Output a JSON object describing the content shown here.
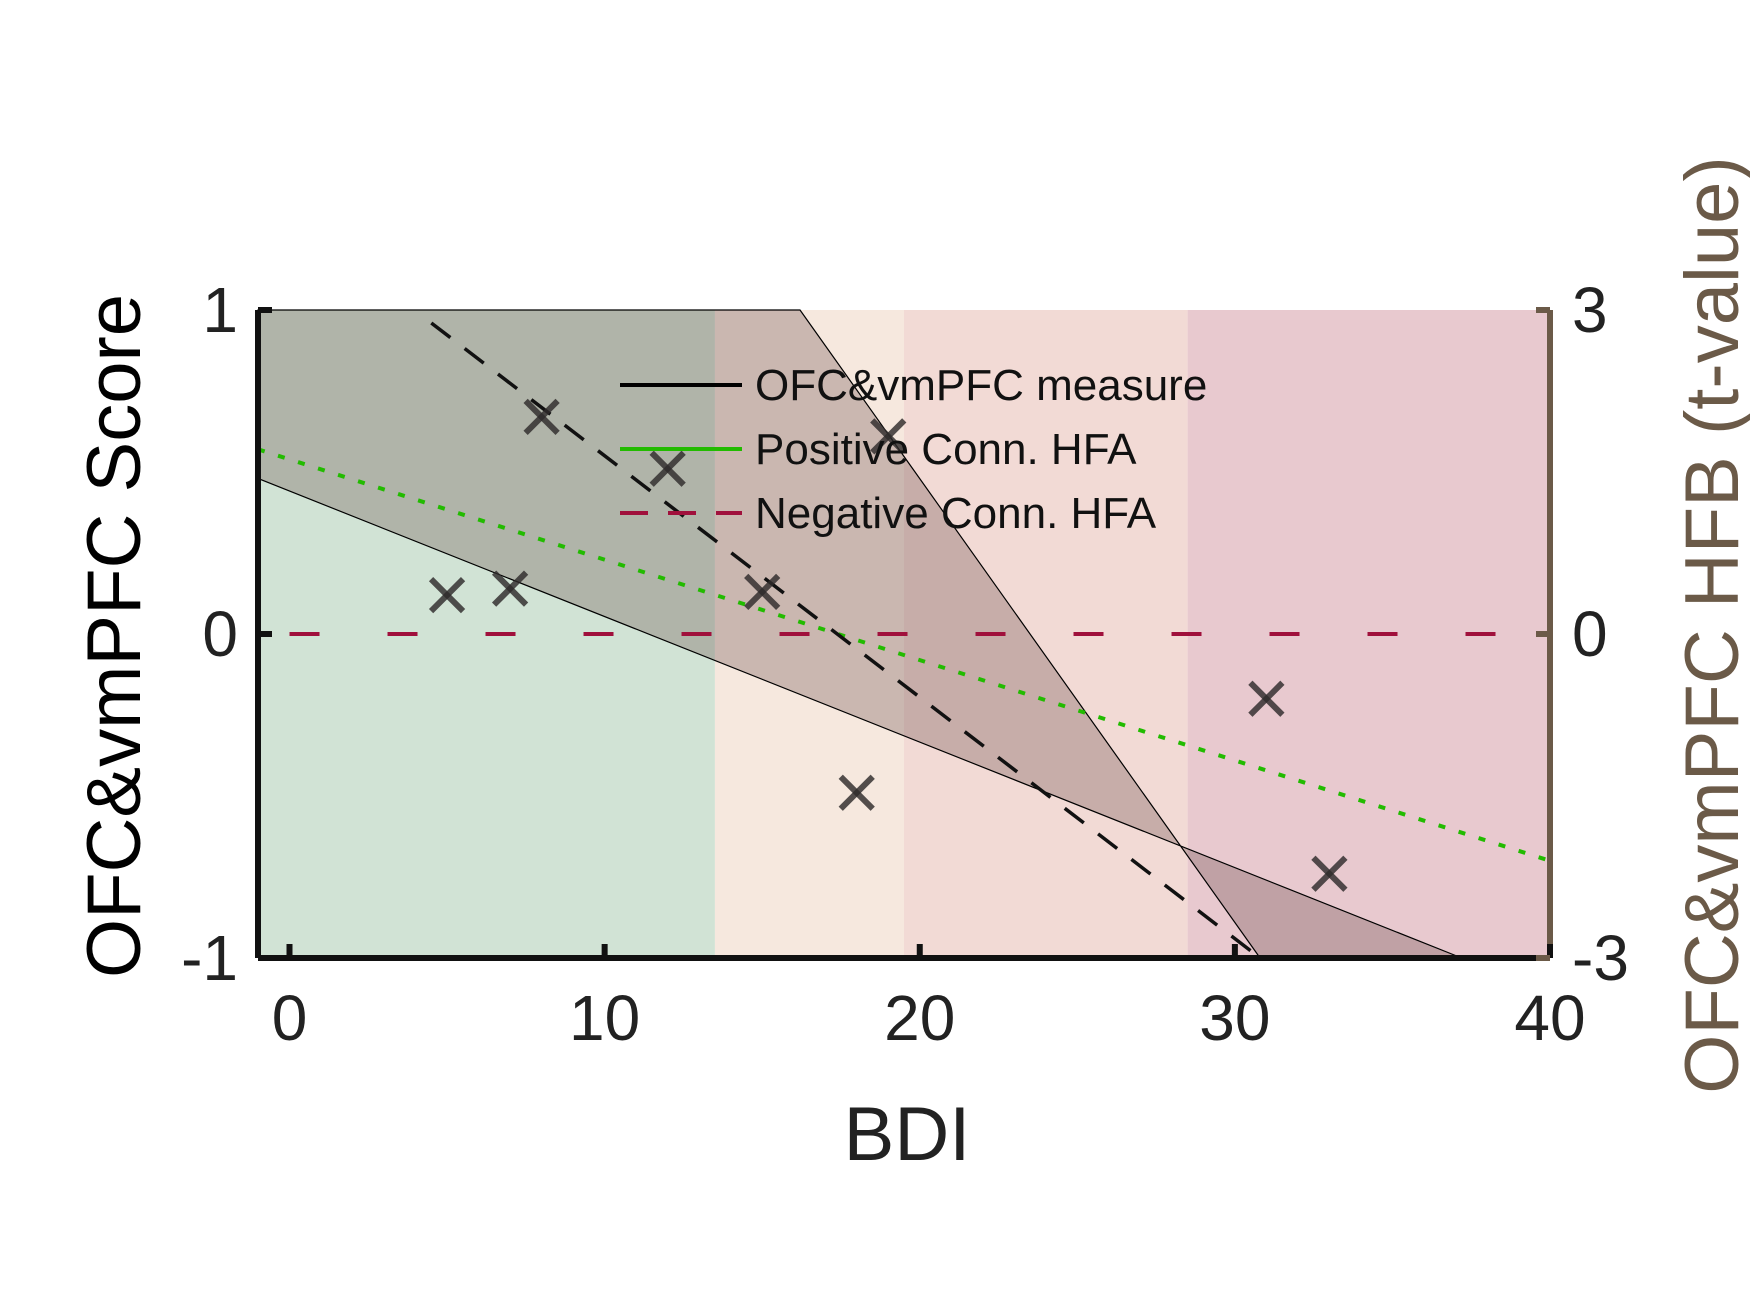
{
  "chart_data": {
    "type": "scatter",
    "xlabel": "BDI",
    "ylabel": "OFC&vmPFC Score",
    "ylabel_right": "OFC&vmPFC HFB (t-value)",
    "xlim": [
      -1,
      40
    ],
    "ylim": [
      -1,
      1
    ],
    "ylim_right": [
      -3,
      3
    ],
    "x_ticks": [
      0,
      10,
      20,
      30,
      40
    ],
    "y_ticks": [
      -1,
      0,
      1
    ],
    "y_ticks_right": [
      -3,
      0,
      3
    ],
    "grid": false,
    "legend_position": "top-center",
    "legend": [
      {
        "label": "OFC&vmPFC measure",
        "color": "#000000",
        "style": "solid"
      },
      {
        "label": "Positive Conn. HFA",
        "color": "#22bb00",
        "style": "solid"
      },
      {
        "label": "Negative Conn. HFA",
        "color": "#a0103c",
        "style": "dashed"
      }
    ],
    "background_bands": [
      {
        "x_range": [
          -1,
          13.5
        ],
        "color": "#d1e3d5"
      },
      {
        "x_range": [
          13.5,
          19.5
        ],
        "color": "#f6e8de"
      },
      {
        "x_range": [
          19.5,
          28.5
        ],
        "color": "#f2dad5"
      },
      {
        "x_range": [
          28.5,
          40
        ],
        "color": "#e8c9cf"
      }
    ],
    "confidence_region": {
      "upper": [
        [
          -1,
          1
        ],
        [
          16.2,
          1
        ],
        [
          30.8,
          -1
        ]
      ],
      "lower": [
        [
          37.2,
          -1
        ],
        [
          -1,
          0.48
        ]
      ],
      "fill": "#5a3a3a",
      "opacity": 0.28
    },
    "points": [
      {
        "x": 5,
        "y": 0.12
      },
      {
        "x": 7,
        "y": 0.14
      },
      {
        "x": 8,
        "y": 0.67
      },
      {
        "x": 12,
        "y": 0.51
      },
      {
        "x": 15,
        "y": 0.13
      },
      {
        "x": 18,
        "y": -0.49
      },
      {
        "x": 19,
        "y": 0.61
      },
      {
        "x": 31,
        "y": -0.2
      },
      {
        "x": 33,
        "y": -0.74
      }
    ],
    "fit_line": {
      "x": [
        4.5,
        30.8
      ],
      "y": [
        0.96,
        -1.0
      ],
      "color": "#111111",
      "style": "dashed"
    },
    "positive_fit": {
      "x": [
        -1,
        40
      ],
      "y": [
        0.57,
        -0.7
      ],
      "color": "#22bb00",
      "style": "dotted"
    },
    "negative_ref": {
      "x": [
        0,
        40
      ],
      "y": [
        0,
        0
      ],
      "color": "#a0103c",
      "style": "dashed"
    }
  }
}
